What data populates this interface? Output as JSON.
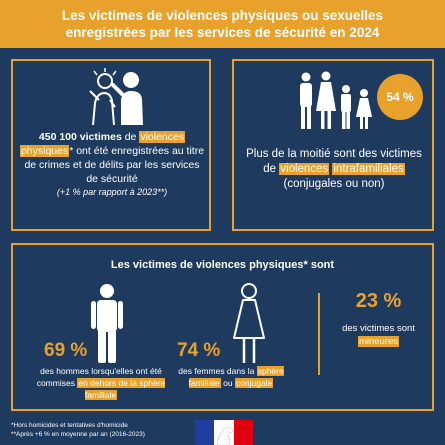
{
  "header": {
    "title": "Les victimes de violences physiques ou sexuelles enregistrées par les services de sécurité en 2024"
  },
  "left_panel": {
    "icon": "violence-scene-icon",
    "count_bold": "450 100 victimes",
    "text_de": " de ",
    "highlight_1": "violences",
    "highlight_2": "physiques",
    "text_rest": "* ont été enregistrées au titre de crimes et de délits par les services de sécurité",
    "sub": "(+1 % par rapport à 2023**)"
  },
  "right_panel": {
    "icon": "family-icon",
    "percent": "54 %",
    "text_before": "Plus de la moitié sont des victimes de ",
    "highlight_1": "violences",
    "highlight_2": "intrafamiliales",
    "text_after": " (conjugales ou non)"
  },
  "bottom_panel": {
    "title": "Les victimes de violences physiques* sont",
    "men": {
      "icon": "man-icon",
      "percent": "69 %",
      "text_before": "des hommes lorsqu'elles ont été commises ",
      "highlight": "en dehors de la sphère familiale"
    },
    "women": {
      "icon": "woman-icon",
      "percent": "74 %",
      "text_before": "des femmes dans la ",
      "highlight_1": "sphère familiale",
      "text_mid": " ou ",
      "highlight_2": "conjugale"
    },
    "minors": {
      "percent": "23 %",
      "text_before": "des victimes sont",
      "highlight": "mineures"
    }
  },
  "footnotes": {
    "line1": "*Hors homicides et tentatives d'homicide",
    "line2": "**Après +6 % en moyenne par an (2016-2023)"
  },
  "logo": {
    "name": "marianne-logo"
  },
  "colors": {
    "background": "#1f3a5f",
    "accent": "#e8a22c",
    "text": "#ffffff"
  }
}
